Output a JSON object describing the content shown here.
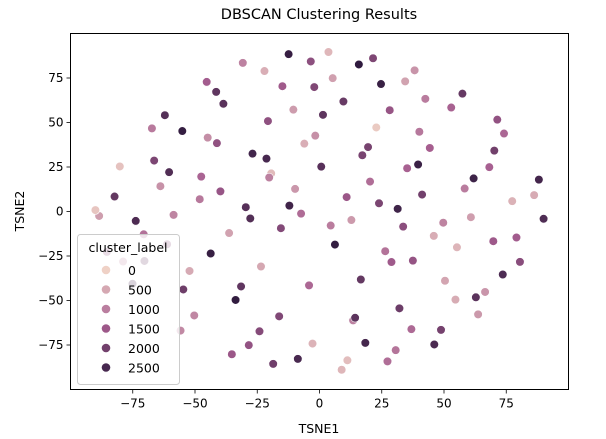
{
  "chart_data": {
    "type": "scatter",
    "title": "DBSCAN Clustering Results",
    "xlabel": "TSNE1",
    "ylabel": "TSNE2",
    "xlim": [
      -100,
      100
    ],
    "ylim": [
      -100,
      100
    ],
    "xticks": [
      -75,
      -50,
      -25,
      0,
      25,
      50,
      75
    ],
    "yticks": [
      -75,
      -50,
      -25,
      0,
      25,
      50,
      75
    ],
    "grid": false,
    "hue": {
      "name": "cluster_label",
      "range": [
        0,
        2800
      ],
      "color_low": "#efd1c6",
      "color_mid": "#a55d8f",
      "color_high": "#2e1a3d"
    },
    "legend": {
      "title": "cluster_label",
      "placement": "lower-left",
      "entries": [
        {
          "label": "0",
          "value": 0
        },
        {
          "label": "500",
          "value": 500
        },
        {
          "label": "1000",
          "value": 1000
        },
        {
          "label": "1500",
          "value": 1500
        },
        {
          "label": "2000",
          "value": 2000
        },
        {
          "label": "2500",
          "value": 2500
        }
      ]
    },
    "series": [
      {
        "x": [
          -88.5,
          -80.2,
          -62.1,
          -45.3,
          -30.8,
          -12.4,
          3.6,
          21.5,
          38.2,
          57.4,
          74.1,
          86.2,
          -75.1,
          -55.8,
          -35.2,
          -18.6,
          8.9,
          27.3,
          46.1,
          63.7,
          80.5,
          -67.3,
          -41.5,
          -22.1,
          -3.5,
          15.8,
          34.4,
          52.9,
          70.2,
          -50.3,
          -28.4,
          -8.7,
          11.2,
          30.6,
          48.8,
          66.5,
          -38.6,
          -14.9,
          5.3,
          24.7,
          42.5,
          -24.1,
          -2.8,
          18.4,
          36.9,
          -10.5,
          9.6,
          28.2,
          -60.4,
          -44.9,
          -20.7,
          1.4,
          22.8,
          44.3,
          61.9,
          -70.6,
          -52.2,
          -33.7,
          -16.2,
          13.5,
          32.1,
          50.4,
          69.8,
          -82.3,
          -63.9,
          -47.5,
          -26.9,
          -6.1,
          17.2,
          39.6,
          58.3,
          77.4,
          -85.4,
          -73.8,
          -58.6,
          -39.8,
          -19.4,
          0.7,
          20.3,
          41.2,
          60.8,
          79.1,
          88.1,
          -78.9,
          -61.2,
          -43.7,
          -23.5,
          -4.2,
          16.6,
          37.5,
          55.2,
          73.6,
          -66.4,
          -48.1,
          -29.6,
          -9.8,
          10.9,
          31.4,
          49.7,
          68.2,
          -54.7,
          -36.3,
          -15.5,
          6.2,
          26.4,
          45.9,
          62.8,
          -41.2,
          -21.3,
          -1.7,
          19.5,
          40.1,
          -27.8,
          -7.4,
          12.8,
          33.6,
          -12.1,
          4.5,
          23.9,
          -31.5,
          35.2,
          -55.1,
          54.6,
          -70.3,
          71.4,
          -90.0,
          90.0,
          -2.1,
          14.3,
          -20.2,
          28.9
        ],
        "y": [
          -2.5,
          25.3,
          54.1,
          72.8,
          83.5,
          88.4,
          89.6,
          86.1,
          79.3,
          66.2,
          43.8,
          9.2,
          -40.6,
          -66.9,
          -80.2,
          -85.6,
          -88.9,
          -84.2,
          -74.7,
          -57.8,
          -28.3,
          46.7,
          67.2,
          78.9,
          84.3,
          82.6,
          73.1,
          58.4,
          34.2,
          -58.4,
          -75.1,
          -82.8,
          -83.6,
          -77.9,
          -66.5,
          -45.2,
          60.5,
          70.4,
          74.9,
          71.6,
          63.3,
          -67.3,
          -74.2,
          -73.8,
          -66.1,
          57.2,
          61.8,
          56.9,
          22.1,
          41.5,
          50.8,
          54.3,
          47.2,
          35.7,
          18.6,
          -12.8,
          -33.4,
          -49.7,
          -58.9,
          -61.2,
          -54.4,
          -38.9,
          -16.7,
          8.4,
          14.2,
          19.6,
          32.5,
          38.1,
          31.6,
          26.4,
          12.9,
          5.8,
          -22.7,
          -5.3,
          -1.9,
          11.3,
          21.4,
          25.2,
          16.8,
          9.5,
          -3.2,
          -14.6,
          17.9,
          -28.1,
          -18.4,
          -23.6,
          -30.9,
          -41.5,
          -38.2,
          -27.6,
          -20.1,
          -35.4,
          28.6,
          6.9,
          2.4,
          12.7,
          8.1,
          1.5,
          -6.3,
          24.9,
          -43.8,
          -12.1,
          -9.4,
          -18.6,
          -22.3,
          -13.7,
          -48.2,
          38.4,
          29.7,
          42.6,
          36.2,
          44.8,
          -3.9,
          -1.2,
          -4.8,
          -8.5,
          3.3,
          -7.9,
          4.6,
          -42.1,
          24.3,
          45.2,
          -49.5,
          -27.8,
          51.6,
          0.8,
          -4.1,
          69.9,
          -59.7,
          19.1,
          -28.4
        ],
        "hue": [
          620,
          180,
          2350,
          1420,
          950,
          2710,
          310,
          1860,
          740,
          2150,
          1280,
          460,
          2580,
          870,
          1520,
          2040,
          330,
          1190,
          2460,
          680,
          1730,
          1050,
          2220,
          420,
          1680,
          2790,
          560,
          1340,
          2010,
          890,
          1610,
          2480,
          240,
          1110,
          1970,
          720,
          2290,
          1460,
          590,
          2680,
          1020,
          1780,
          360,
          2530,
          1240,
          640,
          2120,
          1570,
          2390,
          810,
          1660,
          2240,
          90,
          1390,
          2620,
          1150,
          470,
          2760,
          1830,
          980,
          2070,
          530,
          1480,
          2180,
          760,
          1310,
          2560,
          420,
          1920,
          2650,
          1030,
          380,
          1700,
          2440,
          920,
          1560,
          270,
          2310,
          1190,
          2000,
          610,
          1430,
          2540,
          840,
          1740,
          2690,
          500,
          1270,
          2160,
          1590,
          340,
          2430,
          1880,
          1060,
          2330,
          700,
          1520,
          2600,
          930,
          1360,
          2050,
          570,
          1800,
          2740,
          1140,
          430,
          2270,
          1640,
          2500,
          780,
          1940,
          1080,
          2370,
          1220,
          660,
          1710,
          2590,
          1010,
          1890,
          2210,
          1350,
          2730,
          450,
          2080,
          1620,
          150,
          2410,
          1840,
          2260,
          960,
          1470
        ]
      }
    ]
  }
}
